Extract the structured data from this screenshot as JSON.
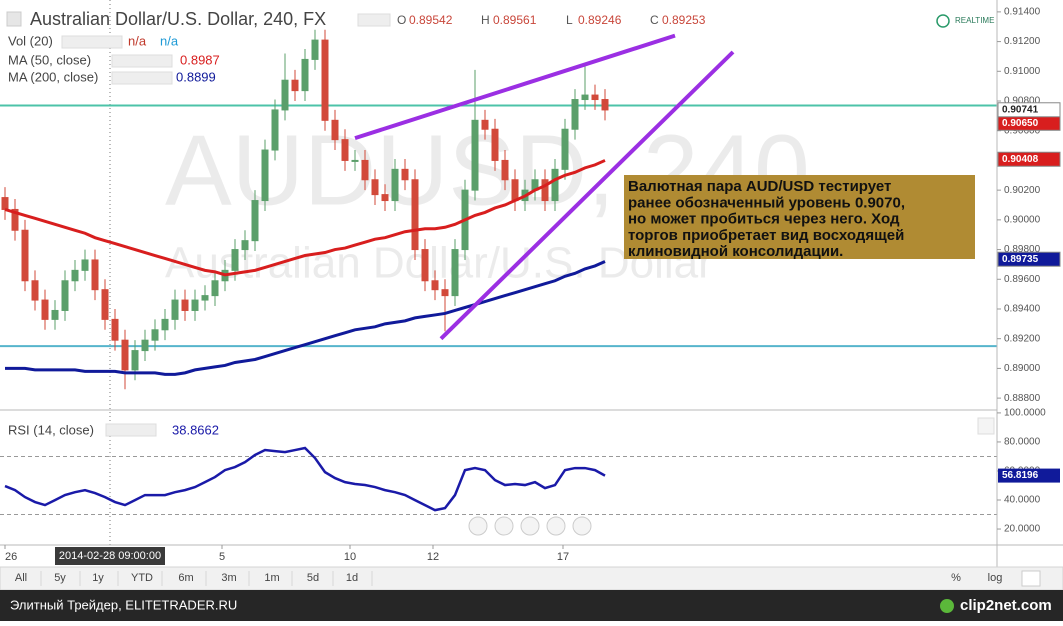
{
  "chart_data": [
    {
      "type": "candlestick",
      "title": "Australian Dollar/U.S. Dollar, 240, FX",
      "ohlc_labels": [
        "O",
        "H",
        "L",
        "C"
      ],
      "ohlc_values": [
        0.89542,
        0.89561,
        0.89246,
        0.89253
      ],
      "realtime": "REALTIME",
      "watermark": "AUDUSD, 240",
      "watermark_subtitle": "Australian Dollar/U.S. Dollar",
      "volume_legend": {
        "name": "Vol (20)",
        "values": [
          "n/a",
          "n/a"
        ],
        "colors": [
          "#c0392b",
          "#1e9ad6"
        ]
      },
      "up_color": "#5b9f6a",
      "down_color": "#d2493a",
      "xlim": [
        -0.5,
        99.2
      ],
      "ylim": [
        0.8872,
        0.9148
      ],
      "yticks": [
        {
          "value": 0.914,
          "label": "0.91400"
        },
        {
          "value": 0.912,
          "label": "0.91200"
        },
        {
          "value": 0.91,
          "label": "0.91000"
        },
        {
          "value": 0.908,
          "label": "0.90800"
        },
        {
          "value": 0.906,
          "label": "0.90600"
        },
        {
          "value": 0.902,
          "label": "0.90200"
        },
        {
          "value": 0.9,
          "label": "0.90000"
        },
        {
          "value": 0.898,
          "label": "0.89800"
        },
        {
          "value": 0.896,
          "label": "0.89600"
        },
        {
          "value": 0.894,
          "label": "0.89400"
        },
        {
          "value": 0.892,
          "label": "0.89200"
        },
        {
          "value": 0.89,
          "label": "0.89000"
        },
        {
          "value": 0.888,
          "label": "0.88800"
        }
      ],
      "xticks": [
        {
          "value": 0,
          "label": "26"
        },
        {
          "value": 21.7,
          "label": "5"
        },
        {
          "value": 34.5,
          "label": "10"
        },
        {
          "value": 42.8,
          "label": "12"
        },
        {
          "value": 55.8,
          "label": "17"
        }
      ],
      "crosshair": {
        "x": 10.5,
        "label": "2014-02-28 09:00:00"
      },
      "open": [
        0.9015,
        0.9007,
        0.8993,
        0.8959,
        0.8946,
        0.8933,
        0.8939,
        0.8959,
        0.8966,
        0.8973,
        0.8953,
        0.8933,
        0.8919,
        0.8899,
        0.8912,
        0.8919,
        0.8926,
        0.8933,
        0.8946,
        0.8939,
        0.8946,
        0.8949,
        0.8959,
        0.8966,
        0.898,
        0.8986,
        0.9013,
        0.9047,
        0.9074,
        0.9094,
        0.9087,
        0.9108,
        0.9121,
        0.9067,
        0.9054,
        0.904,
        0.904,
        0.9027,
        0.9017,
        0.9013,
        0.9034,
        0.9027,
        0.898,
        0.8959,
        0.8953,
        0.8949,
        0.898,
        0.902,
        0.9067,
        0.9061,
        0.904,
        0.9027,
        0.9013,
        0.902,
        0.9027,
        0.9013,
        0.9034,
        0.9061,
        0.9081,
        0.9084,
        0.9081
      ],
      "high": [
        0.9022,
        0.9014,
        0.9,
        0.8966,
        0.8953,
        0.8946,
        0.8966,
        0.8973,
        0.898,
        0.898,
        0.896,
        0.894,
        0.8926,
        0.8919,
        0.8926,
        0.8933,
        0.894,
        0.8953,
        0.8953,
        0.8953,
        0.8956,
        0.8966,
        0.8973,
        0.8987,
        0.8993,
        0.902,
        0.9054,
        0.9081,
        0.9112,
        0.9101,
        0.9115,
        0.9128,
        0.9128,
        0.9074,
        0.9061,
        0.9047,
        0.9047,
        0.9034,
        0.9024,
        0.9041,
        0.9041,
        0.9034,
        0.8987,
        0.8966,
        0.896,
        0.8987,
        0.9027,
        0.9101,
        0.9074,
        0.9068,
        0.9047,
        0.9034,
        0.9027,
        0.9034,
        0.9034,
        0.9041,
        0.9068,
        0.9088,
        0.9105,
        0.9091,
        0.9088
      ],
      "low": [
        0.9,
        0.8986,
        0.8952,
        0.8939,
        0.8926,
        0.8926,
        0.8932,
        0.8952,
        0.8959,
        0.8946,
        0.8926,
        0.8912,
        0.8886,
        0.8892,
        0.8905,
        0.8912,
        0.8919,
        0.8926,
        0.8932,
        0.8932,
        0.8939,
        0.8942,
        0.8952,
        0.8959,
        0.8973,
        0.8979,
        0.9006,
        0.904,
        0.9067,
        0.908,
        0.908,
        0.9101,
        0.906,
        0.9047,
        0.9033,
        0.9033,
        0.902,
        0.901,
        0.9006,
        0.9006,
        0.902,
        0.8973,
        0.8952,
        0.8946,
        0.8925,
        0.8942,
        0.8973,
        0.9013,
        0.9054,
        0.9033,
        0.902,
        0.9006,
        0.9006,
        0.9013,
        0.9006,
        0.9006,
        0.9027,
        0.9054,
        0.9074,
        0.9074,
        0.9067
      ],
      "close": [
        0.9007,
        0.8993,
        0.8959,
        0.8946,
        0.8933,
        0.8939,
        0.8959,
        0.8966,
        0.8973,
        0.8953,
        0.8933,
        0.8919,
        0.8899,
        0.8912,
        0.8919,
        0.8926,
        0.8933,
        0.8946,
        0.8939,
        0.8946,
        0.8949,
        0.8959,
        0.8966,
        0.898,
        0.8986,
        0.9013,
        0.9047,
        0.9074,
        0.9094,
        0.9087,
        0.9108,
        0.9121,
        0.9067,
        0.9054,
        0.904,
        0.904,
        0.9027,
        0.9017,
        0.9013,
        0.9034,
        0.9027,
        0.898,
        0.8959,
        0.8953,
        0.8949,
        0.898,
        0.902,
        0.9067,
        0.9061,
        0.904,
        0.9027,
        0.9013,
        0.902,
        0.9027,
        0.9013,
        0.9034,
        0.9061,
        0.9081,
        0.9084,
        0.9081,
        0.9074
      ],
      "series": [
        {
          "name": "MA (50, close)",
          "color": "#d81e1e",
          "legend_value": 0.8987,
          "values": [
            0.9007,
            0.9005,
            0.9003,
            0.9001,
            0.8999,
            0.8997,
            0.8995,
            0.8993,
            0.8991,
            0.8988,
            0.8986,
            0.8984,
            0.8982,
            0.898,
            0.8978,
            0.8976,
            0.8974,
            0.8972,
            0.897,
            0.8968,
            0.8966,
            0.8965,
            0.8963,
            0.8964,
            0.8965,
            0.8966,
            0.8968,
            0.897,
            0.8972,
            0.8974,
            0.8976,
            0.8977,
            0.8978,
            0.898,
            0.8981,
            0.8983,
            0.8985,
            0.8987,
            0.8988,
            0.899,
            0.8992,
            0.8993,
            0.8994,
            0.8994,
            0.8995,
            0.8997,
            0.9,
            0.9003,
            0.9005,
            0.9008,
            0.901,
            0.9013,
            0.9016,
            0.902,
            0.9023,
            0.9027,
            0.903,
            0.9032,
            0.9035,
            0.9037,
            0.904
          ]
        },
        {
          "name": "MA (200, close)",
          "color": "#101a9a",
          "legend_value": 0.8899,
          "values": [
            0.89,
            0.89,
            0.89,
            0.8899,
            0.8899,
            0.8899,
            0.8899,
            0.8899,
            0.8898,
            0.8898,
            0.8898,
            0.8898,
            0.8897,
            0.8897,
            0.8897,
            0.8897,
            0.8896,
            0.8896,
            0.8897,
            0.8899,
            0.89,
            0.8901,
            0.8902,
            0.8904,
            0.8905,
            0.8906,
            0.8908,
            0.891,
            0.8912,
            0.8914,
            0.8916,
            0.8918,
            0.892,
            0.8922,
            0.8924,
            0.8926,
            0.8927,
            0.8928,
            0.893,
            0.8931,
            0.8932,
            0.8934,
            0.8935,
            0.8936,
            0.8937,
            0.8939,
            0.8941,
            0.8943,
            0.8945,
            0.8947,
            0.8949,
            0.8951,
            0.8953,
            0.8955,
            0.8957,
            0.8959,
            0.8962,
            0.8964,
            0.8967,
            0.8969,
            0.8972
          ]
        }
      ],
      "levels": [
        {
          "value": 0.9077,
          "color": "#4cc3a8"
        },
        {
          "value": 0.8915,
          "color": "#56b4cc"
        }
      ],
      "trendline_color": "#9b2fe3",
      "trendlines": [
        {
          "x": [
            35,
            67
          ],
          "y": [
            0.9055,
            0.9124
          ]
        },
        {
          "x": [
            43.6,
            72.8
          ],
          "y": [
            0.892,
            0.9113
          ]
        }
      ],
      "price_labels": [
        {
          "value": 0.9065,
          "label": "0.90650",
          "color": "#d81e1e",
          "text_color": "#ffffff"
        },
        {
          "value": 0.90741,
          "color": "#ffffff",
          "text_color": "#222222"
        },
        {
          "value": 0.90408,
          "color": "#d81e1e",
          "text_color": "#ffffff"
        },
        {
          "value": 0.89735,
          "color": "#101a9a",
          "text_color": "#ffffff"
        }
      ],
      "annotation": [
        "Валютная пара AUD/USD тестирует",
        "ранее обозначенный уровень 0.9070,",
        "но может пробиться через него. Ход",
        "торгов приобретает вид восходящей",
        "клиновидной консолидации."
      ]
    },
    {
      "type": "line",
      "title": "RSI (14, close)",
      "legend_value": 38.8662,
      "xlim": [
        -0.5,
        99.2
      ],
      "ylim": [
        9,
        102
      ],
      "yticks": [
        {
          "value": 100,
          "label": "100.0000"
        },
        {
          "value": 80,
          "label": "80.0000"
        },
        {
          "value": 60,
          "label": "60.0000"
        },
        {
          "value": 40,
          "label": "40.0000"
        },
        {
          "value": 20,
          "label": "20.0000"
        }
      ],
      "bands": [
        70,
        30
      ],
      "color": "#1a1aa8",
      "values": [
        49.6,
        46.8,
        42.0,
        38.6,
        36.5,
        39.9,
        43.4,
        45.4,
        46.8,
        44.8,
        42.0,
        38.6,
        36.5,
        39.9,
        43.4,
        43.4,
        43.4,
        45.4,
        46.8,
        48.9,
        52.3,
        55.8,
        60.6,
        62.7,
        66.1,
        71.0,
        74.4,
        73.7,
        73.0,
        74.4,
        75.8,
        68.9,
        59.2,
        55.1,
        52.3,
        51.0,
        50.3,
        48.9,
        46.8,
        45.4,
        43.4,
        39.9,
        36.5,
        33.0,
        34.4,
        43.4,
        60.6,
        62.0,
        60.6,
        53.7,
        50.3,
        51.0,
        50.3,
        52.3,
        48.2,
        50.3,
        60.6,
        62.0,
        62.0,
        60.6,
        56.8
      ],
      "last_label": {
        "value": 56.8196,
        "color": "#101a9a"
      }
    }
  ],
  "toolbar": {
    "ranges": [
      "All",
      "5y",
      "1y",
      "YTD",
      "6m",
      "3m",
      "1m",
      "5d",
      "1d"
    ],
    "options": [
      "%",
      "log"
    ]
  },
  "footer": {
    "source": "Элитный Трейдер, ELITETRADER.RU",
    "brand": "clip2net.com"
  }
}
